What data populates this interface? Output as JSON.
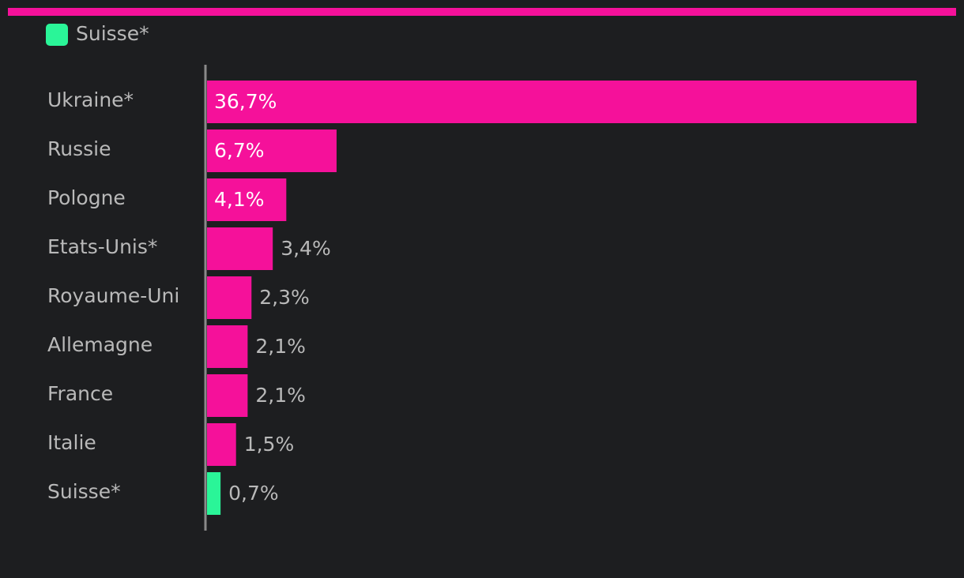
{
  "chart_data": {
    "type": "hbar",
    "legend": {
      "label": "Suisse*",
      "color": "#2af598"
    },
    "categories": [
      "Ukraine*",
      "Russie",
      "Pologne",
      "Etats-Unis*",
      "Royaume-Uni",
      "Allemagne",
      "France",
      "Italie",
      "Suisse*"
    ],
    "values": [
      36.7,
      6.7,
      4.1,
      3.4,
      2.3,
      2.1,
      2.1,
      1.5,
      0.7
    ],
    "value_labels": [
      "36,7%",
      "6,7%",
      "4,1%",
      "3,4%",
      "2,3%",
      "2,1%",
      "2,1%",
      "1,5%",
      "0,7%"
    ],
    "colors": [
      "#f5119a",
      "#f5119a",
      "#f5119a",
      "#f5119a",
      "#f5119a",
      "#f5119a",
      "#f5119a",
      "#f5119a",
      "#2af598"
    ]
  }
}
